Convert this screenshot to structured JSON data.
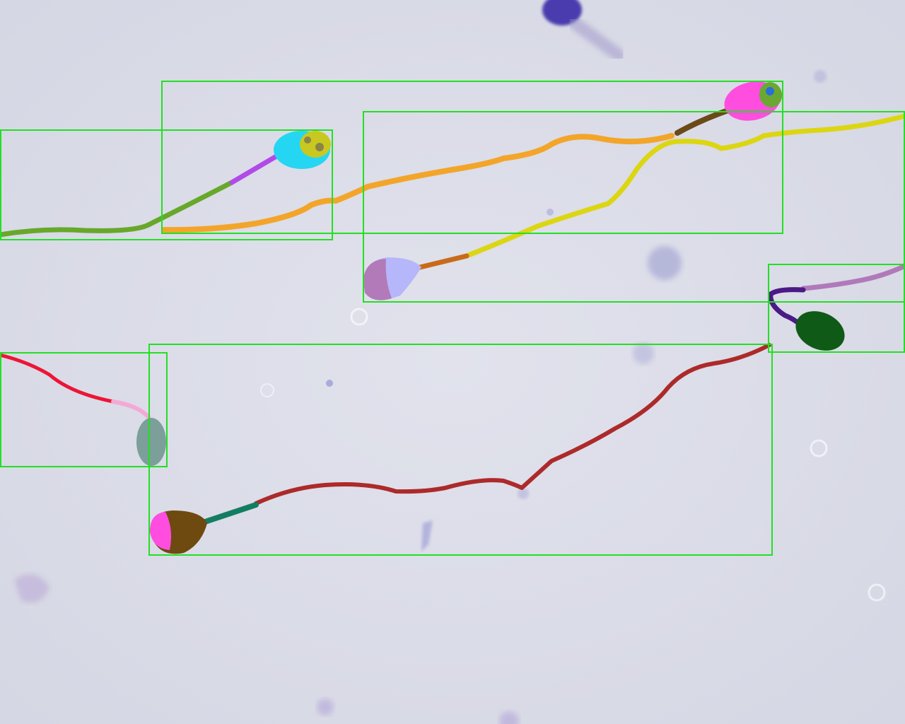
{
  "image": {
    "subject": "sperm-cell-microscopy-annotation",
    "background_color": "#dcdde8",
    "box_color": "#22e022"
  },
  "boxes": [
    {
      "name": "bbox-sperm-1"
    },
    {
      "name": "bbox-sperm-2"
    },
    {
      "name": "bbox-sperm-3"
    },
    {
      "name": "bbox-sperm-4"
    },
    {
      "name": "bbox-sperm-5"
    },
    {
      "name": "bbox-sperm-6"
    },
    {
      "name": "bbox-sperm-7"
    }
  ],
  "cells": [
    {
      "name": "sperm-cyan",
      "head_color": "#25d6f2",
      "acrosome_color": "#c8c820",
      "midpiece_color": "#b14ae8",
      "tail_color": "#67a82a"
    },
    {
      "name": "sperm-magenta",
      "head_color": "#ff4de0",
      "acrosome_color": "#6aa832",
      "midpiece_color": "#6b4a18",
      "tail_color": "#f3a52a"
    },
    {
      "name": "sperm-lavender",
      "head_color": "#b6b6fa",
      "acrosome_color": "#b27ab8",
      "midpiece_color": "#c96a1a",
      "tail_color": "#dcd612"
    },
    {
      "name": "sperm-darkgreen",
      "head_color": "#0f5a17",
      "midpiece_color": "#4b1a86",
      "tail_color": "#b07ab9"
    },
    {
      "name": "sperm-teal",
      "head_color": "#7c9f9a",
      "midpiece_color": "#f4a8d6",
      "tail_color": "#ec1535"
    },
    {
      "name": "sperm-brown",
      "head_color": "#6e4a10",
      "acrosome_color": "#ff4de0",
      "midpiece_color": "#137d62",
      "tail_color": "#ad2a2a"
    }
  ]
}
